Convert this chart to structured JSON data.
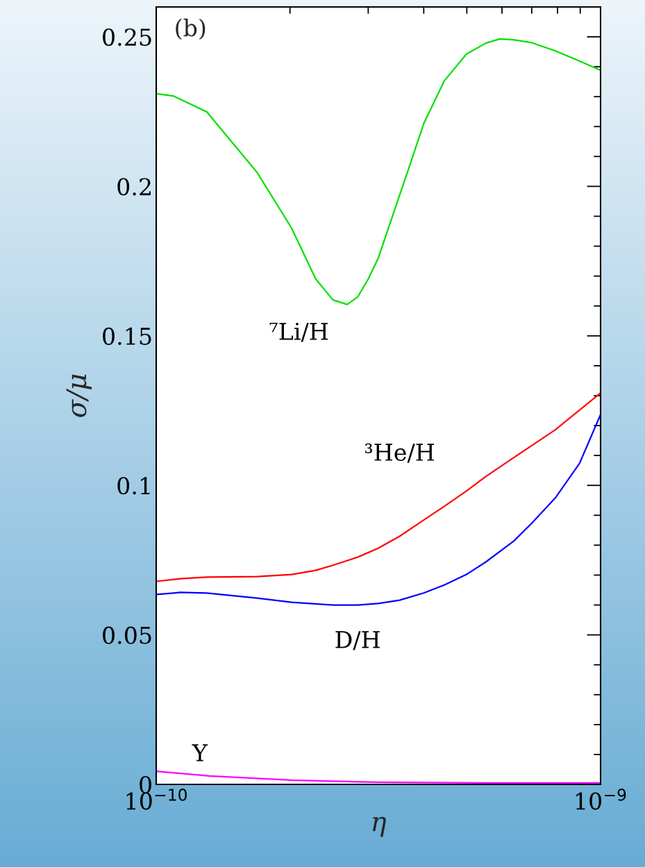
{
  "chart_data": {
    "type": "line",
    "xlabel": "η",
    "ylabel": "σ/μ",
    "log": "x",
    "annotations": [
      "(b)"
    ],
    "xlim": [
      1e-10,
      1e-09
    ],
    "xticks": [
      {
        "value": 1e-10,
        "label": "10$^{−10}$"
      },
      {
        "value": 1e-09,
        "label": "10$^{−9}$"
      }
    ],
    "ylim": [
      0,
      0.26
    ],
    "yticks": [
      0,
      0.05,
      0.1,
      0.15,
      0.2,
      0.25
    ],
    "grid": false,
    "series": [
      {
        "name": "⁷Li/H",
        "color": "#00e000",
        "x": [
          1e-10,
          1.094e-10,
          1.3e-10,
          1.686e-10,
          2.017e-10,
          2.286e-10,
          2.5e-10,
          2.69e-10,
          2.84e-10,
          3e-10,
          3.16e-10,
          3.33e-10,
          3.72e-10,
          4e-10,
          4.45e-10,
          4.99e-10,
          5.52e-10,
          5.93e-10,
          6.38e-10,
          6.98e-10,
          7.91e-10,
          8.97e-10,
          1e-09
        ],
        "values": [
          0.231,
          0.2302,
          0.2249,
          0.2047,
          0.186,
          0.169,
          0.162,
          0.1605,
          0.163,
          0.169,
          0.176,
          0.186,
          0.207,
          0.221,
          0.2353,
          0.2442,
          0.2479,
          0.2493,
          0.249,
          0.2481,
          0.2453,
          0.2419,
          0.2388
        ]
      },
      {
        "name": "³He/H",
        "color": "#ff0000",
        "x": [
          1e-10,
          1.134e-10,
          1.3e-10,
          1.686e-10,
          2.017e-10,
          2.286e-10,
          2.5e-10,
          2.84e-10,
          3.16e-10,
          3.53e-10,
          4e-10,
          4.45e-10,
          4.99e-10,
          5.52e-10,
          6.38e-10,
          7.91e-10,
          1e-09
        ],
        "values": [
          0.0679,
          0.0688,
          0.0693,
          0.0695,
          0.0702,
          0.0716,
          0.0733,
          0.076,
          0.079,
          0.083,
          0.0884,
          0.093,
          0.0981,
          0.103,
          0.1093,
          0.1186,
          0.1309
        ]
      },
      {
        "name": "D/H",
        "color": "#0000ff",
        "x": [
          1e-10,
          1.134e-10,
          1.3e-10,
          1.686e-10,
          2.017e-10,
          2.5e-10,
          2.84e-10,
          3.16e-10,
          3.53e-10,
          4e-10,
          4.45e-10,
          4.99e-10,
          5.52e-10,
          6.38e-10,
          7.06e-10,
          7.91e-10,
          8.97e-10,
          1e-09
        ],
        "values": [
          0.0635,
          0.0642,
          0.064,
          0.0623,
          0.0609,
          0.06,
          0.06,
          0.0605,
          0.0616,
          0.064,
          0.0667,
          0.0702,
          0.0744,
          0.0814,
          0.0879,
          0.0958,
          0.1074,
          0.1237
        ]
      },
      {
        "name": "Y",
        "color": "#ff00ff",
        "x": [
          1e-10,
          1.318e-10,
          2.017e-10,
          3.16e-10,
          5.52e-10,
          1e-09
        ],
        "values": [
          0.0044,
          0.0028,
          0.0014,
          0.0007,
          0.0005,
          0.0005
        ]
      }
    ]
  }
}
